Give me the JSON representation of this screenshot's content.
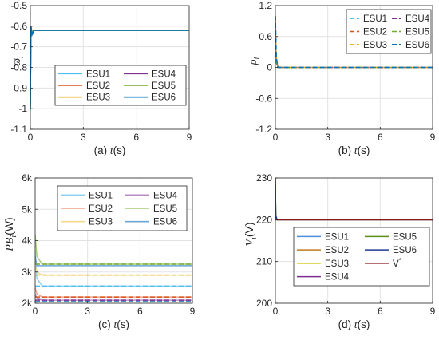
{
  "chart_data": [
    {
      "id": "a",
      "type": "line",
      "caption_prefix": "(a)",
      "xlabel_italic": "t",
      "xlabel_unit": "(s)",
      "ylabel": "ϖ",
      "ylabel_sub": "i",
      "ylabel_unit": "",
      "xlim": [
        0,
        9
      ],
      "ylim": [
        -1.1,
        -0.5
      ],
      "xticks": [
        0,
        3,
        6,
        9
      ],
      "yticks": [
        -1.1,
        -1,
        -0.9,
        -0.8,
        -0.7,
        -0.6,
        -0.5
      ],
      "ytick_labels": [
        "-1.1",
        "-1",
        "-0.9",
        "-0.8",
        "-0.7",
        "-0.6",
        "-0.5"
      ],
      "xtick_labels": [
        "0",
        "3",
        "6",
        "9"
      ],
      "grid": true,
      "legend": {
        "position": "center-right",
        "columns": 2,
        "order": [
          "ESU1",
          "ESU4",
          "ESU2",
          "ESU5",
          "ESU3",
          "ESU6"
        ]
      },
      "series": [
        {
          "name": "ESU1",
          "color": "#4DBEEE",
          "dash": "",
          "x": [
            0,
            0.03,
            0.1,
            0.2,
            9
          ],
          "y": [
            -1.0,
            -0.6,
            -0.64,
            -0.62,
            -0.62
          ]
        },
        {
          "name": "ESU2",
          "color": "#D95319",
          "dash": "",
          "x": [
            0,
            0.03,
            0.1,
            0.2,
            9
          ],
          "y": [
            -0.99,
            -0.6,
            -0.63,
            -0.62,
            -0.62
          ]
        },
        {
          "name": "ESU3",
          "color": "#EDB120",
          "dash": "",
          "x": [
            0,
            0.03,
            0.1,
            0.2,
            9
          ],
          "y": [
            -0.98,
            -0.61,
            -0.63,
            -0.62,
            -0.62
          ]
        },
        {
          "name": "ESU4",
          "color": "#7E2F8E",
          "dash": "",
          "x": [
            0,
            0.03,
            0.1,
            0.2,
            9
          ],
          "y": [
            -0.97,
            -0.6,
            -0.64,
            -0.62,
            -0.62
          ]
        },
        {
          "name": "ESU5",
          "color": "#77AC30",
          "dash": "",
          "x": [
            0,
            0.03,
            0.1,
            0.2,
            9
          ],
          "y": [
            -0.98,
            -0.61,
            -0.63,
            -0.62,
            -0.62
          ]
        },
        {
          "name": "ESU6",
          "color": "#0072BD",
          "dash": "",
          "x": [
            0,
            0.03,
            0.1,
            0.2,
            9
          ],
          "y": [
            -1.0,
            -0.6,
            -0.64,
            -0.62,
            -0.62
          ]
        }
      ]
    },
    {
      "id": "b",
      "type": "line",
      "caption_prefix": "(b)",
      "xlabel_italic": "t",
      "xlabel_unit": "(s)",
      "ylabel": "ρ",
      "ylabel_sub": "i",
      "ylabel_unit": "",
      "xlim": [
        0,
        9
      ],
      "ylim": [
        -1.2,
        1.2
      ],
      "xticks": [
        0,
        3,
        6,
        9
      ],
      "yticks": [
        -1.2,
        -0.6,
        0,
        0.6,
        1.2
      ],
      "ytick_labels": [
        "-1.2",
        "-0.6",
        "0",
        "0.6",
        "1.2"
      ],
      "xtick_labels": [
        "0",
        "3",
        "6",
        "9"
      ],
      "grid": true,
      "legend": {
        "position": "top-right",
        "columns": 2,
        "order": [
          "ESU1",
          "ESU4",
          "ESU2",
          "ESU5",
          "ESU3",
          "ESU6"
        ]
      },
      "series": [
        {
          "name": "ESU1",
          "color": "#4DBEEE",
          "dash": "6,3",
          "x": [
            0,
            0.05,
            0.15,
            9
          ],
          "y": [
            1.0,
            0.2,
            0.0,
            0.0
          ]
        },
        {
          "name": "ESU2",
          "color": "#D95319",
          "dash": "6,3",
          "x": [
            0,
            0.05,
            0.15,
            9
          ],
          "y": [
            0.9,
            0.15,
            0.0,
            0.0
          ]
        },
        {
          "name": "ESU3",
          "color": "#EDB120",
          "dash": "6,3",
          "x": [
            0,
            0.05,
            0.15,
            9
          ],
          "y": [
            0.8,
            0.1,
            0.0,
            0.0
          ]
        },
        {
          "name": "ESU4",
          "color": "#7E2F8E",
          "dash": "6,3",
          "x": [
            0,
            0.05,
            0.15,
            9
          ],
          "y": [
            0.7,
            0.1,
            0.0,
            0.0
          ]
        },
        {
          "name": "ESU5",
          "color": "#77AC30",
          "dash": "6,3",
          "x": [
            0,
            0.05,
            0.15,
            9
          ],
          "y": [
            0.85,
            0.12,
            0.0,
            0.0
          ]
        },
        {
          "name": "ESU6",
          "color": "#0072BD",
          "dash": "6,3",
          "x": [
            0,
            0.05,
            0.15,
            9
          ],
          "y": [
            1.0,
            0.2,
            0.0,
            0.0
          ]
        }
      ]
    },
    {
      "id": "c",
      "type": "line",
      "caption_prefix": "(c)",
      "xlabel_italic": "t",
      "xlabel_unit": "(s)",
      "ylabel": "PB",
      "ylabel_sub": "i",
      "ylabel_unit": "(W)",
      "xlim": [
        0,
        9
      ],
      "ylim": [
        2000,
        6000
      ],
      "xticks": [
        0,
        3,
        6,
        9
      ],
      "yticks": [
        2000,
        3000,
        4000,
        5000,
        6000
      ],
      "ytick_labels": [
        "2k",
        "3k",
        "4k",
        "5k",
        "6k"
      ],
      "xtick_labels": [
        "0",
        "3",
        "6",
        "9"
      ],
      "grid": true,
      "legend": {
        "position": "top-right",
        "columns": 2,
        "order": [
          "ESU1",
          "ESU4",
          "ESU2",
          "ESU5",
          "ESU3",
          "ESU6"
        ]
      },
      "series": [
        {
          "name": "ESU1",
          "color": "#8FD3F0",
          "dash": "",
          "x": [
            0,
            0.1,
            0.4,
            9
          ],
          "y": [
            3700,
            2800,
            2550,
            2550
          ]
        },
        {
          "name": "ESU2",
          "color": "#F0A488",
          "dash": "",
          "x": [
            0,
            0.1,
            0.4,
            9
          ],
          "y": [
            2500,
            2300,
            2200,
            2200
          ]
        },
        {
          "name": "ESU3",
          "color": "#F3D98A",
          "dash": "",
          "x": [
            0,
            0.1,
            0.4,
            9
          ],
          "y": [
            3200,
            3000,
            2900,
            2900
          ]
        },
        {
          "name": "ESU4",
          "color": "#B98DC4",
          "dash": "",
          "x": [
            0,
            0.1,
            0.4,
            9
          ],
          "y": [
            2300,
            2150,
            2100,
            2100
          ]
        },
        {
          "name": "ESU5",
          "color": "#A9CC7C",
          "dash": "",
          "x": [
            0,
            0.1,
            0.4,
            9
          ],
          "y": [
            4200,
            3500,
            3250,
            3250
          ]
        },
        {
          "name": "ESU6",
          "color": "#6AA6D9",
          "dash": "",
          "x": [
            0,
            0.1,
            0.4,
            9
          ],
          "y": [
            3500,
            3200,
            3200,
            3200
          ]
        },
        {
          "name": "",
          "color": "#4DBEEE",
          "dash": "6,3",
          "x": [
            0,
            0.4,
            9
          ],
          "y": [
            2550,
            2550,
            2550
          ]
        },
        {
          "name": "",
          "color": "#D95319",
          "dash": "6,3",
          "x": [
            0,
            0.4,
            9
          ],
          "y": [
            2200,
            2200,
            2200
          ]
        },
        {
          "name": "",
          "color": "#EDB120",
          "dash": "6,3",
          "x": [
            0,
            0.4,
            9
          ],
          "y": [
            2900,
            2900,
            2900
          ]
        },
        {
          "name": "",
          "color": "#7E2F8E",
          "dash": "6,3",
          "x": [
            0,
            0.4,
            9
          ],
          "y": [
            2100,
            2100,
            2100
          ]
        },
        {
          "name": "",
          "color": "#77AC30",
          "dash": "6,3",
          "x": [
            0,
            0.4,
            9
          ],
          "y": [
            3250,
            3250,
            3250
          ]
        },
        {
          "name": "",
          "color": "#0072BD",
          "dash": "6,3",
          "x": [
            0,
            0.4,
            9
          ],
          "y": [
            2050,
            2050,
            2050
          ]
        }
      ]
    },
    {
      "id": "d",
      "type": "line",
      "caption_prefix": "(d)",
      "xlabel_italic": "t",
      "xlabel_unit": "(s)",
      "ylabel": "V",
      "ylabel_sub": "i",
      "ylabel_unit": "(V)",
      "xlim": [
        0,
        9
      ],
      "ylim": [
        200,
        230
      ],
      "xticks": [
        0,
        3,
        6,
        9
      ],
      "yticks": [
        200,
        210,
        220,
        230
      ],
      "ytick_labels": [
        "200",
        "210",
        "220",
        "230"
      ],
      "xtick_labels": [
        "0",
        "3",
        "6",
        "9"
      ],
      "grid": true,
      "legend": {
        "position": "center-right",
        "columns": 2,
        "order": [
          "ESU1",
          "ESU5",
          "ESU2",
          "ESU6",
          "ESU3",
          "V*",
          "ESU4"
        ]
      },
      "series": [
        {
          "name": "ESU1",
          "color": "#4D8FD9",
          "dash": "",
          "x": [
            0,
            0.02,
            0.1,
            9
          ],
          "y": [
            230,
            221,
            220,
            220
          ]
        },
        {
          "name": "ESU2",
          "color": "#C0791B",
          "dash": "",
          "x": [
            0,
            0.02,
            0.1,
            9
          ],
          "y": [
            229,
            220.5,
            220,
            220
          ]
        },
        {
          "name": "ESU3",
          "color": "#D6BF00",
          "dash": "",
          "x": [
            0,
            0.02,
            0.1,
            9
          ],
          "y": [
            229,
            220.5,
            220,
            220
          ]
        },
        {
          "name": "ESU4",
          "color": "#7E2F8E",
          "dash": "",
          "x": [
            0,
            0.02,
            0.1,
            9
          ],
          "y": [
            228,
            220.3,
            220,
            220
          ]
        },
        {
          "name": "ESU5",
          "color": "#5B8C1A",
          "dash": "",
          "x": [
            0,
            0.02,
            0.1,
            9
          ],
          "y": [
            229,
            220.5,
            220,
            220
          ]
        },
        {
          "name": "ESU6",
          "color": "#1F3A93",
          "dash": "",
          "x": [
            0,
            0.02,
            0.1,
            9
          ],
          "y": [
            230,
            221,
            220,
            220
          ]
        },
        {
          "name": "V",
          "name_sup": "*",
          "color": "#8B1A1A",
          "dash": "",
          "x": [
            0,
            9
          ],
          "y": [
            220,
            220
          ]
        }
      ]
    }
  ]
}
